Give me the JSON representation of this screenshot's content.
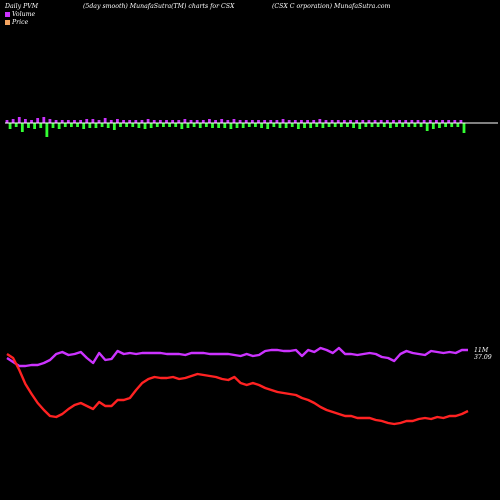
{
  "header": {
    "left": "Daily PVM",
    "mid": "(5day smooth) MunafaSutra(TM) charts for CSX",
    "right": "(CSX  C                    orporation) MunafaSutra.com"
  },
  "legend": [
    {
      "label": "Volume",
      "color": "#cc33ff"
    },
    {
      "label": "Price",
      "color": "#f4a460"
    }
  ],
  "chart_data": {
    "type": "line",
    "title": "Daily PVM (5day smooth) MunafaSutra(TM) charts for CSX",
    "volume_bars": {
      "baseline_color": "#ffffff",
      "up_color": "#cc33ff",
      "down_color": "#33ff33",
      "values": [
        3,
        -6,
        4,
        -4,
        6,
        -9,
        4,
        -5,
        3,
        -6,
        5,
        -5,
        6,
        -14,
        4,
        -5,
        3,
        -6,
        3,
        -4,
        3,
        -4,
        3,
        -4,
        3,
        -6,
        4,
        -5,
        4,
        -5,
        3,
        -4,
        5,
        -5,
        3,
        -7,
        4,
        -4,
        3,
        -4,
        3,
        -4,
        3,
        -5,
        3,
        -6,
        4,
        -5,
        3,
        -4,
        3,
        -4,
        3,
        -4,
        3,
        -4,
        3,
        -6,
        4,
        -5,
        3,
        -4,
        3,
        -5,
        3,
        -4,
        4,
        -5,
        3,
        -5,
        4,
        -5,
        3,
        -6,
        4,
        -5,
        3,
        -5,
        3,
        -4,
        3,
        -4,
        3,
        -5,
        3,
        -6,
        3,
        -4,
        3,
        -5,
        4,
        -5,
        3,
        -4,
        3,
        -6,
        3,
        -5,
        3,
        -5,
        3,
        -4,
        4,
        -5,
        3,
        -4,
        3,
        -4,
        3,
        -4,
        3,
        -4,
        3,
        -5,
        3,
        -6,
        3,
        -4,
        3,
        -4,
        3,
        -4,
        3,
        -4,
        3,
        -5,
        3,
        -4,
        3,
        -4,
        3,
        -4,
        3,
        -4,
        3,
        -4,
        3,
        -8,
        3,
        -6,
        3,
        -5,
        3,
        -4,
        3,
        -4,
        3,
        -4,
        3,
        -10
      ]
    },
    "series": [
      {
        "name": "Volume",
        "color": "#cc33ff",
        "values": [
          0.82,
          0.78,
          0.74,
          0.74,
          0.75,
          0.75,
          0.77,
          0.8,
          0.86,
          0.88,
          0.85,
          0.86,
          0.88,
          0.82,
          0.77,
          0.87,
          0.8,
          0.81,
          0.89,
          0.86,
          0.87,
          0.86,
          0.87,
          0.87,
          0.87,
          0.87,
          0.86,
          0.86,
          0.86,
          0.85,
          0.87,
          0.87,
          0.87,
          0.86,
          0.86,
          0.86,
          0.86,
          0.85,
          0.84,
          0.86,
          0.84,
          0.85,
          0.89,
          0.9,
          0.9,
          0.89,
          0.89,
          0.9,
          0.84,
          0.9,
          0.88,
          0.92,
          0.9,
          0.87,
          0.92,
          0.86,
          0.86,
          0.85,
          0.86,
          0.87,
          0.86,
          0.83,
          0.82,
          0.79,
          0.86,
          0.89,
          0.87,
          0.86,
          0.85,
          0.89,
          0.88,
          0.87,
          0.88,
          0.87,
          0.9,
          0.9
        ]
      },
      {
        "name": "Price",
        "color": "#ff2222",
        "values": [
          0.86,
          0.82,
          0.7,
          0.56,
          0.46,
          0.37,
          0.3,
          0.24,
          0.23,
          0.26,
          0.31,
          0.35,
          0.37,
          0.34,
          0.31,
          0.38,
          0.34,
          0.34,
          0.4,
          0.4,
          0.42,
          0.5,
          0.57,
          0.61,
          0.63,
          0.62,
          0.62,
          0.63,
          0.61,
          0.62,
          0.64,
          0.66,
          0.65,
          0.64,
          0.63,
          0.61,
          0.6,
          0.63,
          0.57,
          0.55,
          0.57,
          0.55,
          0.52,
          0.5,
          0.48,
          0.47,
          0.46,
          0.45,
          0.42,
          0.4,
          0.37,
          0.33,
          0.3,
          0.28,
          0.26,
          0.24,
          0.24,
          0.22,
          0.22,
          0.22,
          0.2,
          0.19,
          0.17,
          0.16,
          0.17,
          0.19,
          0.19,
          0.21,
          0.22,
          0.21,
          0.23,
          0.22,
          0.24,
          0.24,
          0.26,
          0.29
        ]
      }
    ],
    "end_labels": {
      "volume": "11M",
      "price": "37.09"
    }
  }
}
